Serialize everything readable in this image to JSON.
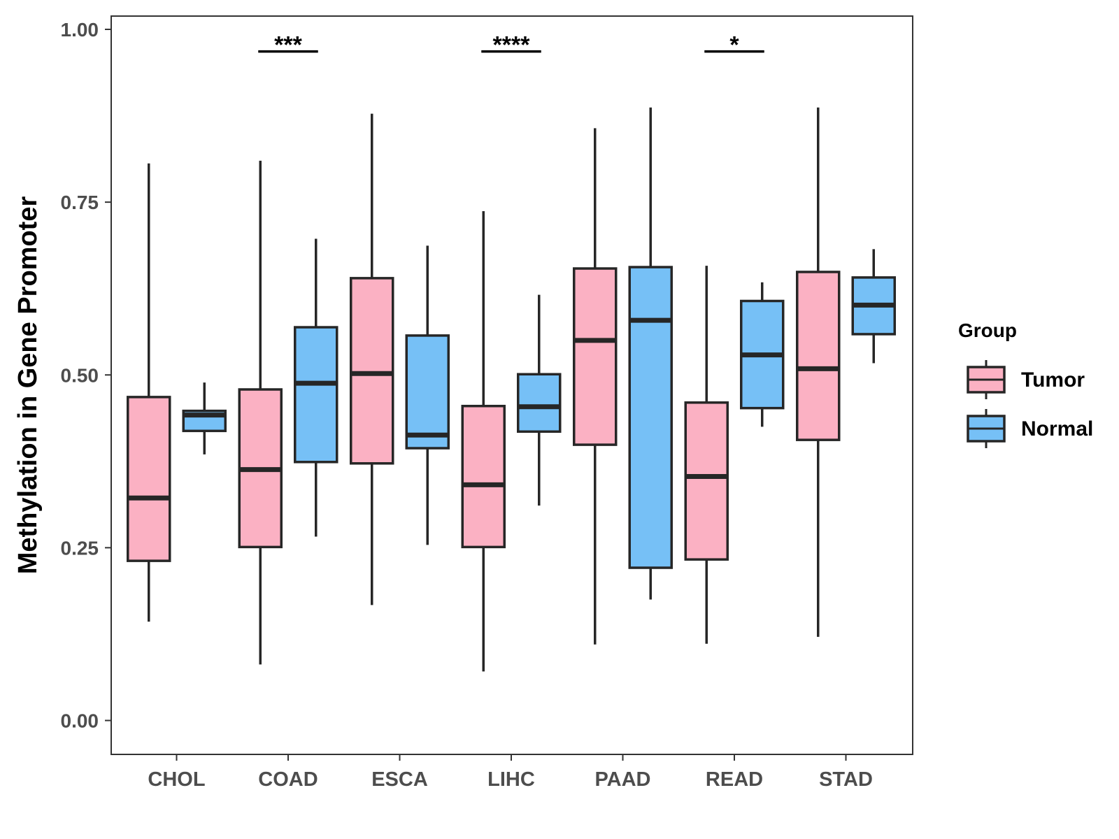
{
  "chart_data": {
    "type": "boxplot",
    "title": "",
    "xlabel": "",
    "ylabel": "Methylation in Gene Promoter",
    "ylim": [
      -0.045,
      1.02
    ],
    "yticks": [
      0.0,
      0.25,
      0.5,
      0.75,
      1.0
    ],
    "ytick_labels": [
      "0.00",
      "0.25",
      "0.50",
      "0.75",
      "1.00"
    ],
    "grid": false,
    "categories": [
      "CHOL",
      "COAD",
      "ESCA",
      "LIHC",
      "PAAD",
      "READ",
      "STAD"
    ],
    "legend": {
      "title": "Group",
      "position": "right",
      "entries": [
        {
          "name": "Tumor",
          "color": "#FBB1C3"
        },
        {
          "name": "Normal",
          "color": "#76C0F6"
        }
      ]
    },
    "series": [
      {
        "name": "Tumor",
        "color": "#FBB1C3",
        "boxes": [
          {
            "min": 0.143,
            "q1": 0.231,
            "median": 0.322,
            "q3": 0.468,
            "max": 0.806
          },
          {
            "min": 0.081,
            "q1": 0.251,
            "median": 0.363,
            "q3": 0.479,
            "max": 0.81
          },
          {
            "min": 0.167,
            "q1": 0.372,
            "median": 0.502,
            "q3": 0.64,
            "max": 0.878
          },
          {
            "min": 0.071,
            "q1": 0.251,
            "median": 0.341,
            "q3": 0.455,
            "max": 0.737
          },
          {
            "min": 0.11,
            "q1": 0.399,
            "median": 0.55,
            "q3": 0.654,
            "max": 0.857
          },
          {
            "min": 0.111,
            "q1": 0.233,
            "median": 0.353,
            "q3": 0.46,
            "max": 0.658
          },
          {
            "min": 0.121,
            "q1": 0.406,
            "median": 0.509,
            "q3": 0.649,
            "max": 0.887
          }
        ]
      },
      {
        "name": "Normal",
        "color": "#76C0F6",
        "boxes": [
          {
            "min": 0.385,
            "q1": 0.419,
            "median": 0.442,
            "q3": 0.448,
            "max": 0.489
          },
          {
            "min": 0.266,
            "q1": 0.374,
            "median": 0.488,
            "q3": 0.569,
            "max": 0.697
          },
          {
            "min": 0.254,
            "q1": 0.394,
            "median": 0.413,
            "q3": 0.557,
            "max": 0.687
          },
          {
            "min": 0.311,
            "q1": 0.418,
            "median": 0.454,
            "q3": 0.501,
            "max": 0.616
          },
          {
            "min": 0.175,
            "q1": 0.221,
            "median": 0.579,
            "q3": 0.656,
            "max": 0.887
          },
          {
            "min": 0.425,
            "q1": 0.452,
            "median": 0.529,
            "q3": 0.607,
            "max": 0.634
          },
          {
            "min": 0.517,
            "q1": 0.559,
            "median": 0.601,
            "q3": 0.641,
            "max": 0.682
          }
        ]
      }
    ],
    "annotations": [
      {
        "category": "COAD",
        "label": "***",
        "y": 0.968
      },
      {
        "category": "LIHC",
        "label": "****",
        "y": 0.968
      },
      {
        "category": "READ",
        "label": "*",
        "y": 0.968
      }
    ]
  }
}
